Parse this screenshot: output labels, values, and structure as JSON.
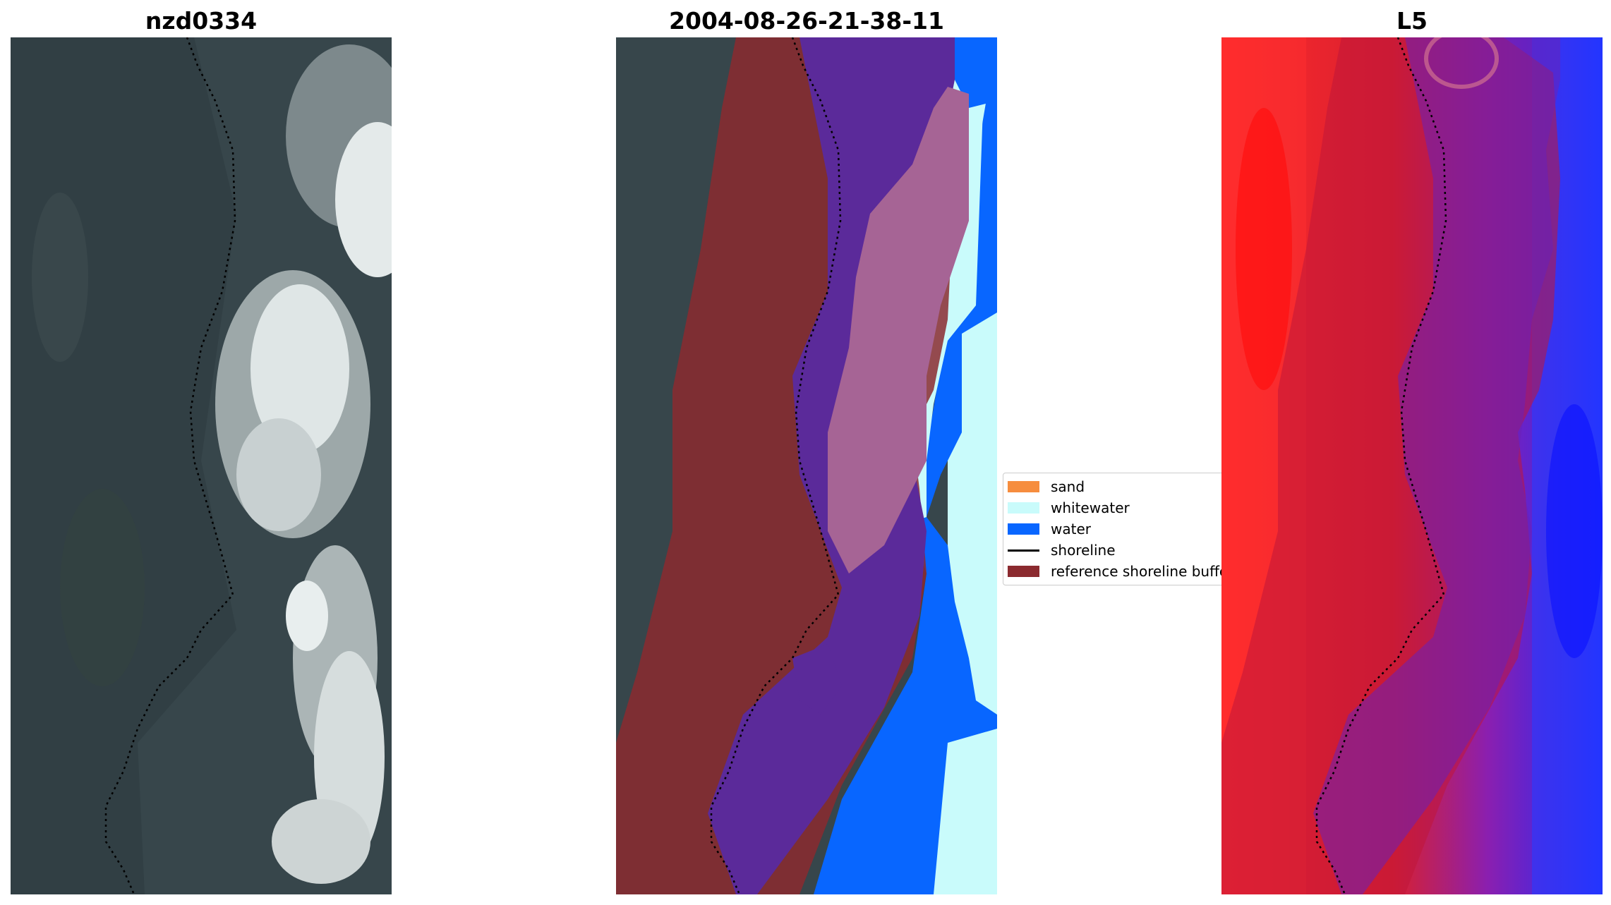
{
  "panels": {
    "left_title": "nzd0334",
    "middle_title": "2004-08-26-21-38-11",
    "right_title": "L5"
  },
  "legend": {
    "items": [
      {
        "label": "sand",
        "color": "#f68d3e"
      },
      {
        "label": "whitewater",
        "color": "#c9fbfb"
      },
      {
        "label": "water",
        "color": "#0866ff"
      },
      {
        "label": "shoreline",
        "color": "#000000"
      },
      {
        "label": "reference shoreline buffer",
        "color": "#8b2a2f"
      }
    ]
  }
}
